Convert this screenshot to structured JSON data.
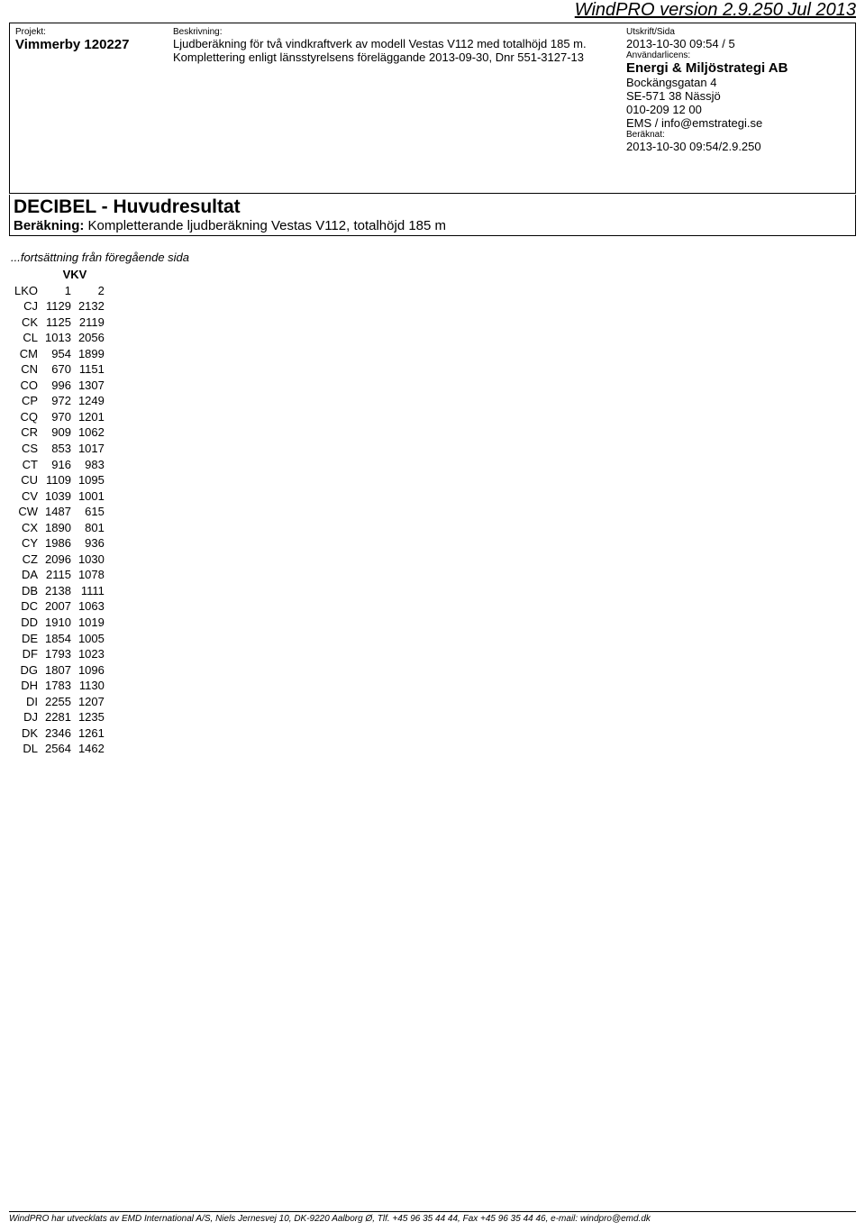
{
  "version_header": "WindPRO version 2.9.250   Jul 2013",
  "header": {
    "left": {
      "label": "Projekt:",
      "value": "Vimmerby 120227"
    },
    "mid": {
      "label": "Beskrivning:",
      "line1": "Ljudberäkning för två vindkraftverk av modell Vestas V112 med totalhöjd 185 m.",
      "line2": "Komplettering enligt länsstyrelsens föreläggande 2013-09-30, Dnr 551-3127-13"
    },
    "right": {
      "print_label": "Utskrift/Sida",
      "print_value": "2013-10-30 09:54 / 5",
      "license_label": "Användarlicens:",
      "company": "Energi & Miljöstrategi AB",
      "addr1": "Bockängsgatan 4",
      "addr2": "SE-571 38 Nässjö",
      "phone": "010-209 12 00",
      "email": "EMS / info@emstrategi.se",
      "calc_label": "Beräknat:",
      "calc_value": "2013-10-30 09:54/2.9.250"
    }
  },
  "section": {
    "title": "DECIBEL - Huvudresultat",
    "sub_label": "Beräkning:",
    "sub_value": " Kompletterande ljudberäkning Vestas V112, totalhöjd 185 m"
  },
  "continuation": "...fortsättning från föregående sida",
  "table": {
    "vkv_label": "VKV",
    "lko_label": "LKO",
    "col1": "1",
    "col2": "2",
    "rows": [
      {
        "id": "CJ",
        "a": "1129",
        "b": "2132"
      },
      {
        "id": "CK",
        "a": "1125",
        "b": "2119"
      },
      {
        "id": "CL",
        "a": "1013",
        "b": "2056"
      },
      {
        "id": "CM",
        "a": "954",
        "b": "1899"
      },
      {
        "id": "CN",
        "a": "670",
        "b": "1151"
      },
      {
        "id": "CO",
        "a": "996",
        "b": "1307"
      },
      {
        "id": "CP",
        "a": "972",
        "b": "1249"
      },
      {
        "id": "CQ",
        "a": "970",
        "b": "1201"
      },
      {
        "id": "CR",
        "a": "909",
        "b": "1062"
      },
      {
        "id": "CS",
        "a": "853",
        "b": "1017"
      },
      {
        "id": "CT",
        "a": "916",
        "b": "983"
      },
      {
        "id": "CU",
        "a": "1109",
        "b": "1095"
      },
      {
        "id": "CV",
        "a": "1039",
        "b": "1001"
      },
      {
        "id": "CW",
        "a": "1487",
        "b": "615"
      },
      {
        "id": "CX",
        "a": "1890",
        "b": "801"
      },
      {
        "id": "CY",
        "a": "1986",
        "b": "936"
      },
      {
        "id": "CZ",
        "a": "2096",
        "b": "1030"
      },
      {
        "id": "DA",
        "a": "2115",
        "b": "1078"
      },
      {
        "id": "DB",
        "a": "2138",
        "b": "1111"
      },
      {
        "id": "DC",
        "a": "2007",
        "b": "1063"
      },
      {
        "id": "DD",
        "a": "1910",
        "b": "1019"
      },
      {
        "id": "DE",
        "a": "1854",
        "b": "1005"
      },
      {
        "id": "DF",
        "a": "1793",
        "b": "1023"
      },
      {
        "id": "DG",
        "a": "1807",
        "b": "1096"
      },
      {
        "id": "DH",
        "a": "1783",
        "b": "1130"
      },
      {
        "id": "DI",
        "a": "2255",
        "b": "1207"
      },
      {
        "id": "DJ",
        "a": "2281",
        "b": "1235"
      },
      {
        "id": "DK",
        "a": "2346",
        "b": "1261"
      },
      {
        "id": "DL",
        "a": "2564",
        "b": "1462"
      }
    ]
  },
  "footer": "WindPRO har utvecklats av EMD International A/S, Niels Jernesvej 10, DK-9220 Aalborg Ø, Tlf. +45 96 35 44 44, Fax +45 96 35 44 46, e-mail: windpro@emd.dk"
}
